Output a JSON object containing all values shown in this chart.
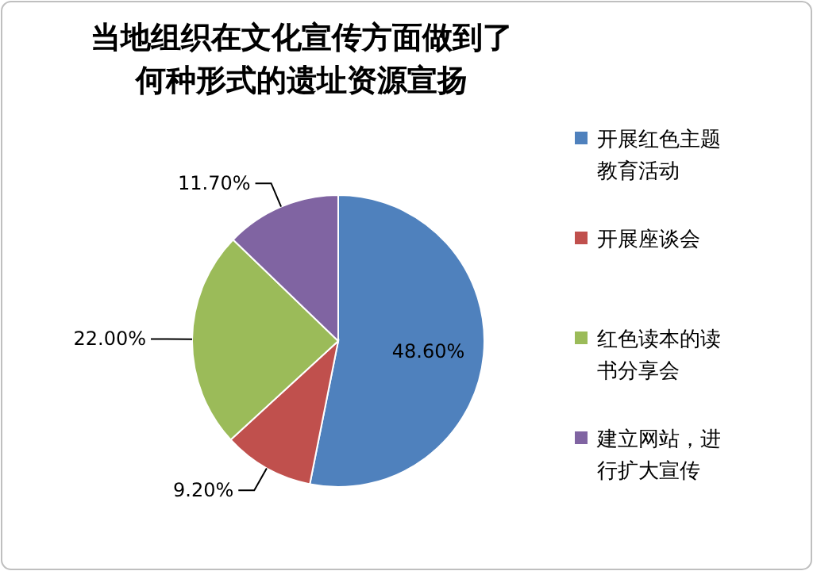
{
  "chart_data": {
    "type": "pie",
    "title": "当地组织在文化宣传方面做到了何种形式的遗址资源宣扬",
    "categories": [
      "开展红色主题教育活动",
      "开展座谈会",
      "红色读本的读书分享会",
      "建立网站，进行扩大宣传"
    ],
    "values": [
      48.6,
      9.2,
      22.0,
      11.7
    ],
    "colors": [
      "#4f81bd",
      "#c0504d",
      "#9bbb59",
      "#8064a2"
    ],
    "value_labels": [
      "48.60%",
      "9.20%",
      "22.00%",
      "11.70%"
    ],
    "legend": "right"
  }
}
